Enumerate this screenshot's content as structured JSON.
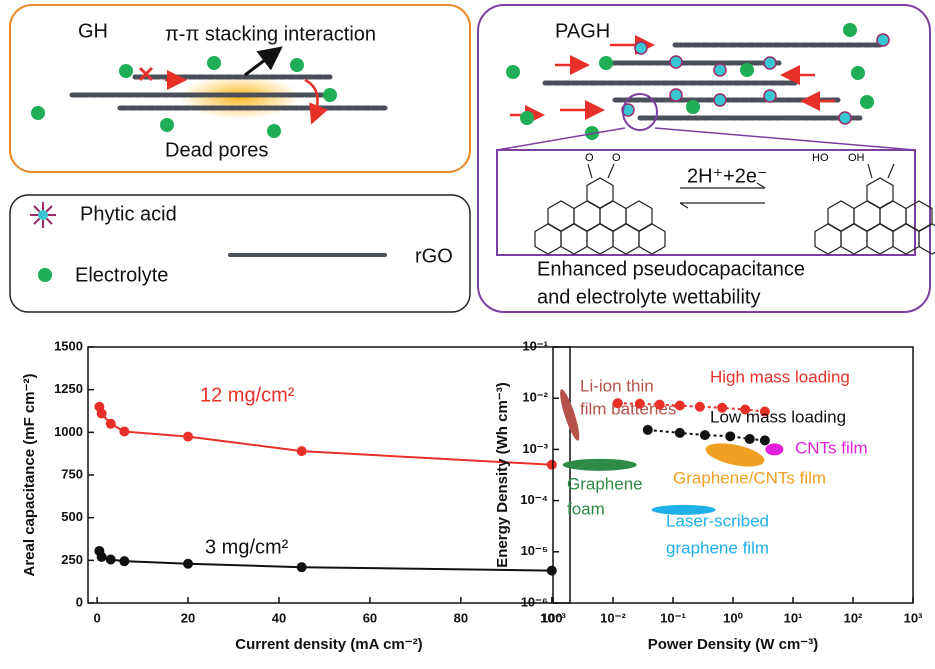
{
  "diagram": {
    "gh": {
      "label": "GH",
      "stacking": "π-π stacking interaction",
      "dead_pores": "Dead pores"
    },
    "legend": {
      "phytic_acid": "Phytic acid",
      "electrolyte": "Electrolyte",
      "rgo": "rGO"
    },
    "pagh": {
      "label": "PAGH",
      "reaction": "2H⁺+2e⁻",
      "o_left": "O",
      "o_right": "O",
      "ho": "HO",
      "oh": "OH",
      "caption": [
        "Enhanced pseudocapacitance",
        "and electrolyte wettability"
      ]
    }
  },
  "chart_data": [
    {
      "type": "line",
      "x_label": "Current density (mA cm⁻²)",
      "y_label": "Areal capacitance (mF cm⁻²)",
      "x": [
        0.5,
        1,
        3,
        6,
        20,
        45,
        100
      ],
      "series": [
        {
          "name": "12 mg/cm²",
          "color": "#e8302a",
          "values": [
            1150,
            1110,
            1050,
            1005,
            975,
            890,
            810
          ]
        },
        {
          "name": "3 mg/cm²",
          "color": "#111111",
          "values": [
            305,
            270,
            255,
            245,
            230,
            210,
            190
          ]
        }
      ],
      "xlim": [
        -2,
        104
      ],
      "ylim": [
        0,
        1500
      ],
      "xticks": [
        0,
        20,
        40,
        60,
        80,
        100
      ],
      "yticks": [
        0,
        250,
        500,
        750,
        1000,
        1250,
        1500
      ]
    },
    {
      "type": "scatter",
      "xscale": "log",
      "yscale": "log",
      "x_label": "Power Density (W cm⁻³)",
      "y_label": "Energy Density (Wh cm⁻³)",
      "series": [
        {
          "name": "High mass loading",
          "color": "#e8302a",
          "x": [
            0.012,
            0.028,
            0.06,
            0.13,
            0.28,
            0.66,
            1.6,
            3.4
          ],
          "values": [
            0.008,
            0.0078,
            0.0075,
            0.0072,
            0.0068,
            0.0065,
            0.006,
            0.0055
          ]
        },
        {
          "name": "Low mass loading",
          "color": "#111111",
          "x": [
            0.038,
            0.13,
            0.34,
            0.9,
            1.9,
            3.4
          ],
          "values": [
            0.0024,
            0.0021,
            0.0019,
            0.0018,
            0.0016,
            0.0015
          ]
        }
      ],
      "regions": [
        {
          "name": [
            "Li-ion thin",
            "film batteries"
          ],
          "color": "#b5524a",
          "x": 0.0019,
          "y": 0.0047
        },
        {
          "name": [
            "Graphene",
            "foam"
          ],
          "color": "#2e8b45",
          "x": 0.006,
          "y": 0.0005
        },
        {
          "name": [
            "Graphene/CNTs film"
          ],
          "color": "#f0a020",
          "x": 1.08,
          "y": 0.00078
        },
        {
          "name": [
            "CNTs film"
          ],
          "color": "#e020d8",
          "x": 4.9,
          "y": 0.001
        },
        {
          "name": [
            "Laser-scribed",
            "graphene film"
          ],
          "color": "#20b0e8",
          "x": 0.15,
          "y": 6.6e-05
        }
      ],
      "xlim": [
        0.001,
        1000
      ],
      "ylim": [
        1e-06,
        0.1
      ],
      "xticks": [
        {
          "value": 0.001,
          "label": "10⁻³"
        },
        {
          "value": 0.01,
          "label": "10⁻²"
        },
        {
          "value": 0.1,
          "label": "10⁻¹"
        },
        {
          "value": 1,
          "label": "10⁰"
        },
        {
          "value": 10,
          "label": "10¹"
        },
        {
          "value": 100,
          "label": "10²"
        },
        {
          "value": 1000,
          "label": "10³"
        }
      ],
      "yticks": [
        {
          "value": 1e-06,
          "label": "10⁻⁶"
        },
        {
          "value": 1e-05,
          "label": "10⁻⁵"
        },
        {
          "value": 0.0001,
          "label": "10⁻⁴"
        },
        {
          "value": 0.001,
          "label": "10⁻³"
        },
        {
          "value": 0.01,
          "label": "10⁻²"
        },
        {
          "value": 0.1,
          "label": "10⁻¹"
        }
      ]
    }
  ]
}
